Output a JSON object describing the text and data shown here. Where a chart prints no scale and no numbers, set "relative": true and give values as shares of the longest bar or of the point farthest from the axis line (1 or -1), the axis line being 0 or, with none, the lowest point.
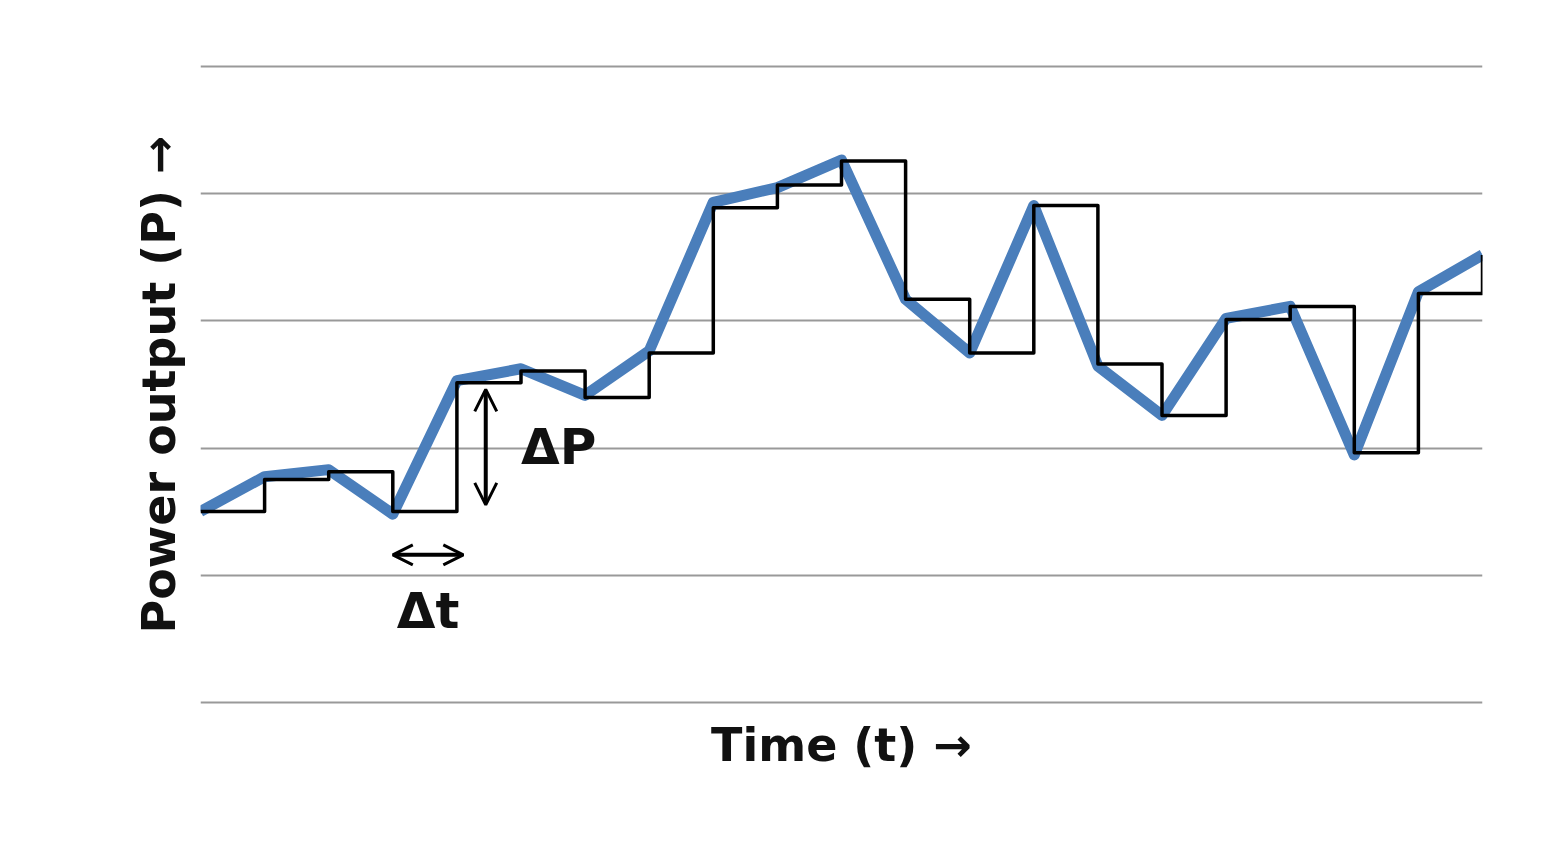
{
  "chart_data": {
    "type": "line",
    "relative": true,
    "xlabel": "Time (t) →",
    "ylabel": "Power output (P) →",
    "grid": "y",
    "categories": [
      null,
      null,
      null,
      null,
      null,
      null,
      null,
      null,
      null,
      null,
      null,
      null,
      null,
      null,
      null,
      null,
      null,
      null,
      null,
      null,
      null
    ],
    "series": [
      {
        "color": "#4a7ebb",
        "values": [
          0.352,
          0.416,
          0.429,
          0.347,
          0.593,
          0.615,
          0.566,
          0.648,
          0.922,
          0.949,
          1,
          0.743,
          0.644,
          0.916,
          0.62,
          0.529,
          0.708,
          0.73,
          0.456,
          0.757,
          0.825
        ]
      },
      {
        "type": "step",
        "color": "#000000",
        "values": [
          0.352,
          0.411,
          0.425,
          0.352,
          0.589,
          0.611,
          0.562,
          0.644,
          0.912,
          0.954,
          0.998,
          0.743,
          0.644,
          0.916,
          0.624,
          0.529,
          0.706,
          0.73,
          0.46,
          0.754,
          0.825
        ]
      }
    ],
    "annotations": [
      "ΔP",
      "Δt"
    ]
  }
}
